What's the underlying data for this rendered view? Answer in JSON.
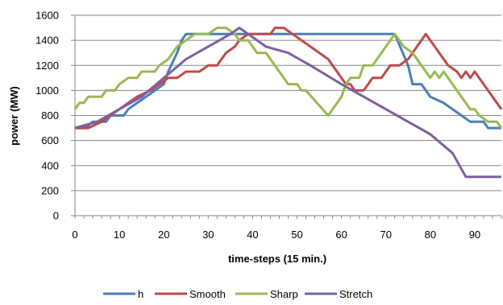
{
  "chart_data": {
    "type": "line",
    "xlabel": "time-steps (15 min.)",
    "ylabel": "power (MW)",
    "xlim": [
      0,
      96
    ],
    "ylim": [
      0,
      1600
    ],
    "xticks": [
      "0",
      "10",
      "20",
      "30",
      "40",
      "50",
      "60",
      "70",
      "80",
      "90"
    ],
    "yticks": [
      "0",
      "200",
      "400",
      "600",
      "800",
      "1000",
      "1200",
      "1400",
      "1600"
    ],
    "grid": "horizontal",
    "legend_position": "bottom",
    "series": [
      {
        "name": "h",
        "color": "#4a7ebb",
        "points": [
          [
            0,
            700
          ],
          [
            2,
            700
          ],
          [
            3,
            720
          ],
          [
            4,
            750
          ],
          [
            7,
            750
          ],
          [
            8,
            800
          ],
          [
            11,
            800
          ],
          [
            12,
            850
          ],
          [
            14,
            900
          ],
          [
            16,
            950
          ],
          [
            18,
            1000
          ],
          [
            20,
            1050
          ],
          [
            21,
            1150
          ],
          [
            23,
            1300
          ],
          [
            24,
            1400
          ],
          [
            25,
            1450
          ],
          [
            72,
            1450
          ],
          [
            75,
            1200
          ],
          [
            76,
            1050
          ],
          [
            78,
            1050
          ],
          [
            80,
            950
          ],
          [
            83,
            900
          ],
          [
            85,
            850
          ],
          [
            87,
            800
          ],
          [
            89,
            750
          ],
          [
            92,
            750
          ],
          [
            93,
            700
          ],
          [
            96,
            700
          ]
        ]
      },
      {
        "name": "Smooth",
        "color": "#be4b48",
        "points": [
          [
            0,
            700
          ],
          [
            3,
            700
          ],
          [
            6,
            750
          ],
          [
            8,
            800
          ],
          [
            10,
            850
          ],
          [
            12,
            900
          ],
          [
            14,
            950
          ],
          [
            17,
            1000
          ],
          [
            19,
            1050
          ],
          [
            21,
            1100
          ],
          [
            23,
            1100
          ],
          [
            25,
            1150
          ],
          [
            28,
            1150
          ],
          [
            30,
            1200
          ],
          [
            32,
            1200
          ],
          [
            33,
            1250
          ],
          [
            34,
            1300
          ],
          [
            36,
            1350
          ],
          [
            37,
            1400
          ],
          [
            39,
            1450
          ],
          [
            44,
            1450
          ],
          [
            45,
            1500
          ],
          [
            47,
            1500
          ],
          [
            49,
            1450
          ],
          [
            51,
            1400
          ],
          [
            53,
            1350
          ],
          [
            55,
            1300
          ],
          [
            57,
            1250
          ],
          [
            58,
            1200
          ],
          [
            60,
            1100
          ],
          [
            61,
            1050
          ],
          [
            62,
            1050
          ],
          [
            63,
            1000
          ],
          [
            65,
            1000
          ],
          [
            66,
            1050
          ],
          [
            67,
            1100
          ],
          [
            69,
            1100
          ],
          [
            71,
            1200
          ],
          [
            73,
            1200
          ],
          [
            75,
            1250
          ],
          [
            77,
            1350
          ],
          [
            79,
            1450
          ],
          [
            81,
            1350
          ],
          [
            83,
            1250
          ],
          [
            84,
            1200
          ],
          [
            86,
            1150
          ],
          [
            87,
            1100
          ],
          [
            88,
            1150
          ],
          [
            89,
            1100
          ],
          [
            90,
            1150
          ],
          [
            92,
            1050
          ],
          [
            94,
            950
          ],
          [
            96,
            850
          ]
        ]
      },
      {
        "name": "Sharp",
        "color": "#98b954",
        "points": [
          [
            0,
            850
          ],
          [
            1,
            900
          ],
          [
            2,
            900
          ],
          [
            3,
            950
          ],
          [
            6,
            950
          ],
          [
            7,
            1000
          ],
          [
            9,
            1000
          ],
          [
            10,
            1050
          ],
          [
            12,
            1100
          ],
          [
            14,
            1100
          ],
          [
            15,
            1150
          ],
          [
            18,
            1150
          ],
          [
            19,
            1200
          ],
          [
            21,
            1250
          ],
          [
            22,
            1300
          ],
          [
            23,
            1350
          ],
          [
            25,
            1400
          ],
          [
            27,
            1450
          ],
          [
            30,
            1450
          ],
          [
            32,
            1500
          ],
          [
            34,
            1500
          ],
          [
            36,
            1450
          ],
          [
            37,
            1400
          ],
          [
            39,
            1400
          ],
          [
            40,
            1350
          ],
          [
            41,
            1300
          ],
          [
            43,
            1300
          ],
          [
            44,
            1250
          ],
          [
            45,
            1200
          ],
          [
            46,
            1150
          ],
          [
            47,
            1100
          ],
          [
            48,
            1050
          ],
          [
            50,
            1050
          ],
          [
            51,
            1000
          ],
          [
            52,
            1000
          ],
          [
            57,
            800
          ],
          [
            60,
            950
          ],
          [
            61,
            1050
          ],
          [
            62,
            1100
          ],
          [
            64,
            1100
          ],
          [
            65,
            1200
          ],
          [
            67,
            1200
          ],
          [
            69,
            1300
          ],
          [
            71,
            1400
          ],
          [
            72,
            1450
          ],
          [
            74,
            1350
          ],
          [
            76,
            1300
          ],
          [
            77,
            1250
          ],
          [
            78,
            1200
          ],
          [
            80,
            1100
          ],
          [
            81,
            1150
          ],
          [
            82,
            1100
          ],
          [
            83,
            1150
          ],
          [
            85,
            1050
          ],
          [
            87,
            950
          ],
          [
            89,
            850
          ],
          [
            90,
            850
          ],
          [
            91,
            800
          ],
          [
            93,
            750
          ],
          [
            95,
            750
          ],
          [
            96,
            700
          ]
        ]
      },
      {
        "name": "Stretch",
        "color": "#7d60a0",
        "points": [
          [
            0,
            700
          ],
          [
            5,
            750
          ],
          [
            10,
            850
          ],
          [
            15,
            950
          ],
          [
            20,
            1100
          ],
          [
            25,
            1250
          ],
          [
            30,
            1350
          ],
          [
            35,
            1450
          ],
          [
            37,
            1500
          ],
          [
            39,
            1450
          ],
          [
            43,
            1350
          ],
          [
            48,
            1300
          ],
          [
            53,
            1200
          ],
          [
            60,
            1050
          ],
          [
            65,
            950
          ],
          [
            70,
            850
          ],
          [
            75,
            750
          ],
          [
            80,
            650
          ],
          [
            85,
            500
          ],
          [
            88,
            310
          ],
          [
            96,
            310
          ]
        ]
      }
    ]
  }
}
